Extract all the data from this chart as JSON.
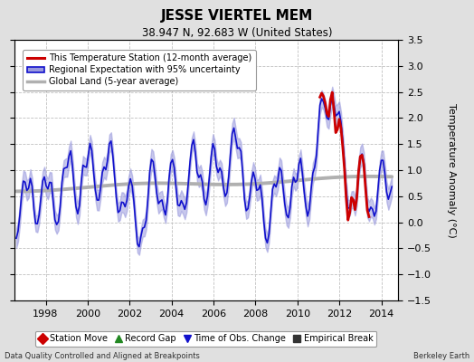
{
  "title": "JESSE VIERTEL MEM",
  "subtitle": "38.947 N, 92.683 W (United States)",
  "ylabel": "Temperature Anomaly (°C)",
  "footer_left": "Data Quality Controlled and Aligned at Breakpoints",
  "footer_right": "Berkeley Earth",
  "xlim": [
    1996.5,
    2014.8
  ],
  "ylim": [
    -1.5,
    3.5
  ],
  "yticks": [
    -1.5,
    -1.0,
    -0.5,
    0.0,
    0.5,
    1.0,
    1.5,
    2.0,
    2.5,
    3.0,
    3.5
  ],
  "xticks": [
    1998,
    2000,
    2002,
    2004,
    2006,
    2008,
    2010,
    2012,
    2014
  ],
  "bg_color": "#e0e0e0",
  "plot_bg_color": "#ffffff",
  "grid_color": "#c0c0c0",
  "regional_color": "#1010cc",
  "regional_fill_color": "#9999dd",
  "station_color": "#cc0000",
  "global_color": "#b0b0b0",
  "legend_items": [
    {
      "label": "This Temperature Station (12-month average)",
      "color": "#cc0000",
      "lw": 2.0
    },
    {
      "label": "Regional Expectation with 95% uncertainty",
      "color": "#1010cc",
      "fill": "#9999dd"
    },
    {
      "label": "Global Land (5-year average)",
      "color": "#b0b0b0",
      "lw": 2.5
    }
  ],
  "marker_items": [
    {
      "label": "Station Move",
      "color": "#cc0000",
      "marker": "D"
    },
    {
      "label": "Record Gap",
      "color": "#228822",
      "marker": "^"
    },
    {
      "label": "Time of Obs. Change",
      "color": "#1010cc",
      "marker": "v"
    },
    {
      "label": "Empirical Break",
      "color": "#333333",
      "marker": "s"
    }
  ]
}
